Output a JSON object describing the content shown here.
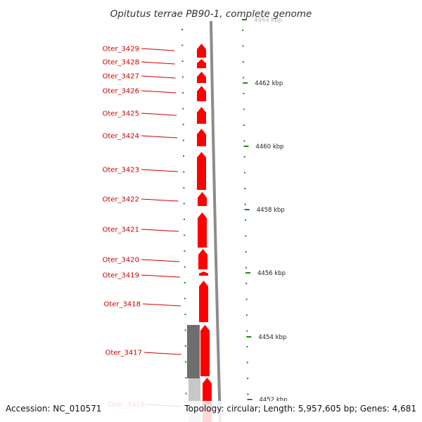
{
  "title": "Opitutus terrae PB90-1, complete genome",
  "footer": {
    "accession": "Accession: NC_010571",
    "topology": "Topology: circular; Length: 5,957,605 bp; Genes: 4,681"
  },
  "colors": {
    "gene": "#ff0000",
    "label": "#d00000",
    "tick": "#1a8a1a",
    "backbone": "#8c8c8c",
    "inner_band_dark": "#6e6e6e",
    "inner_band_light": "#c8c8c8"
  },
  "scale": {
    "unit": "kbp",
    "labels": [
      "4464 kbp",
      "4462 kbp",
      "4460 kbp",
      "4458 kbp",
      "4456 kbp",
      "4454 kbp",
      "4452 kbp"
    ]
  },
  "genes": [
    {
      "label": "Oter_3429"
    },
    {
      "label": "Oter_3428"
    },
    {
      "label": "Oter_3427"
    },
    {
      "label": "Oter_3426"
    },
    {
      "label": "Oter_3425"
    },
    {
      "label": "Oter_3424"
    },
    {
      "label": "Oter_3423"
    },
    {
      "label": "Oter_3422"
    },
    {
      "label": "Oter_3421"
    },
    {
      "label": "Oter_3420"
    },
    {
      "label": "Oter_3419"
    },
    {
      "label": "Oter_3418"
    },
    {
      "label": "Oter_3417"
    },
    {
      "label": "Oter_3416"
    }
  ]
}
